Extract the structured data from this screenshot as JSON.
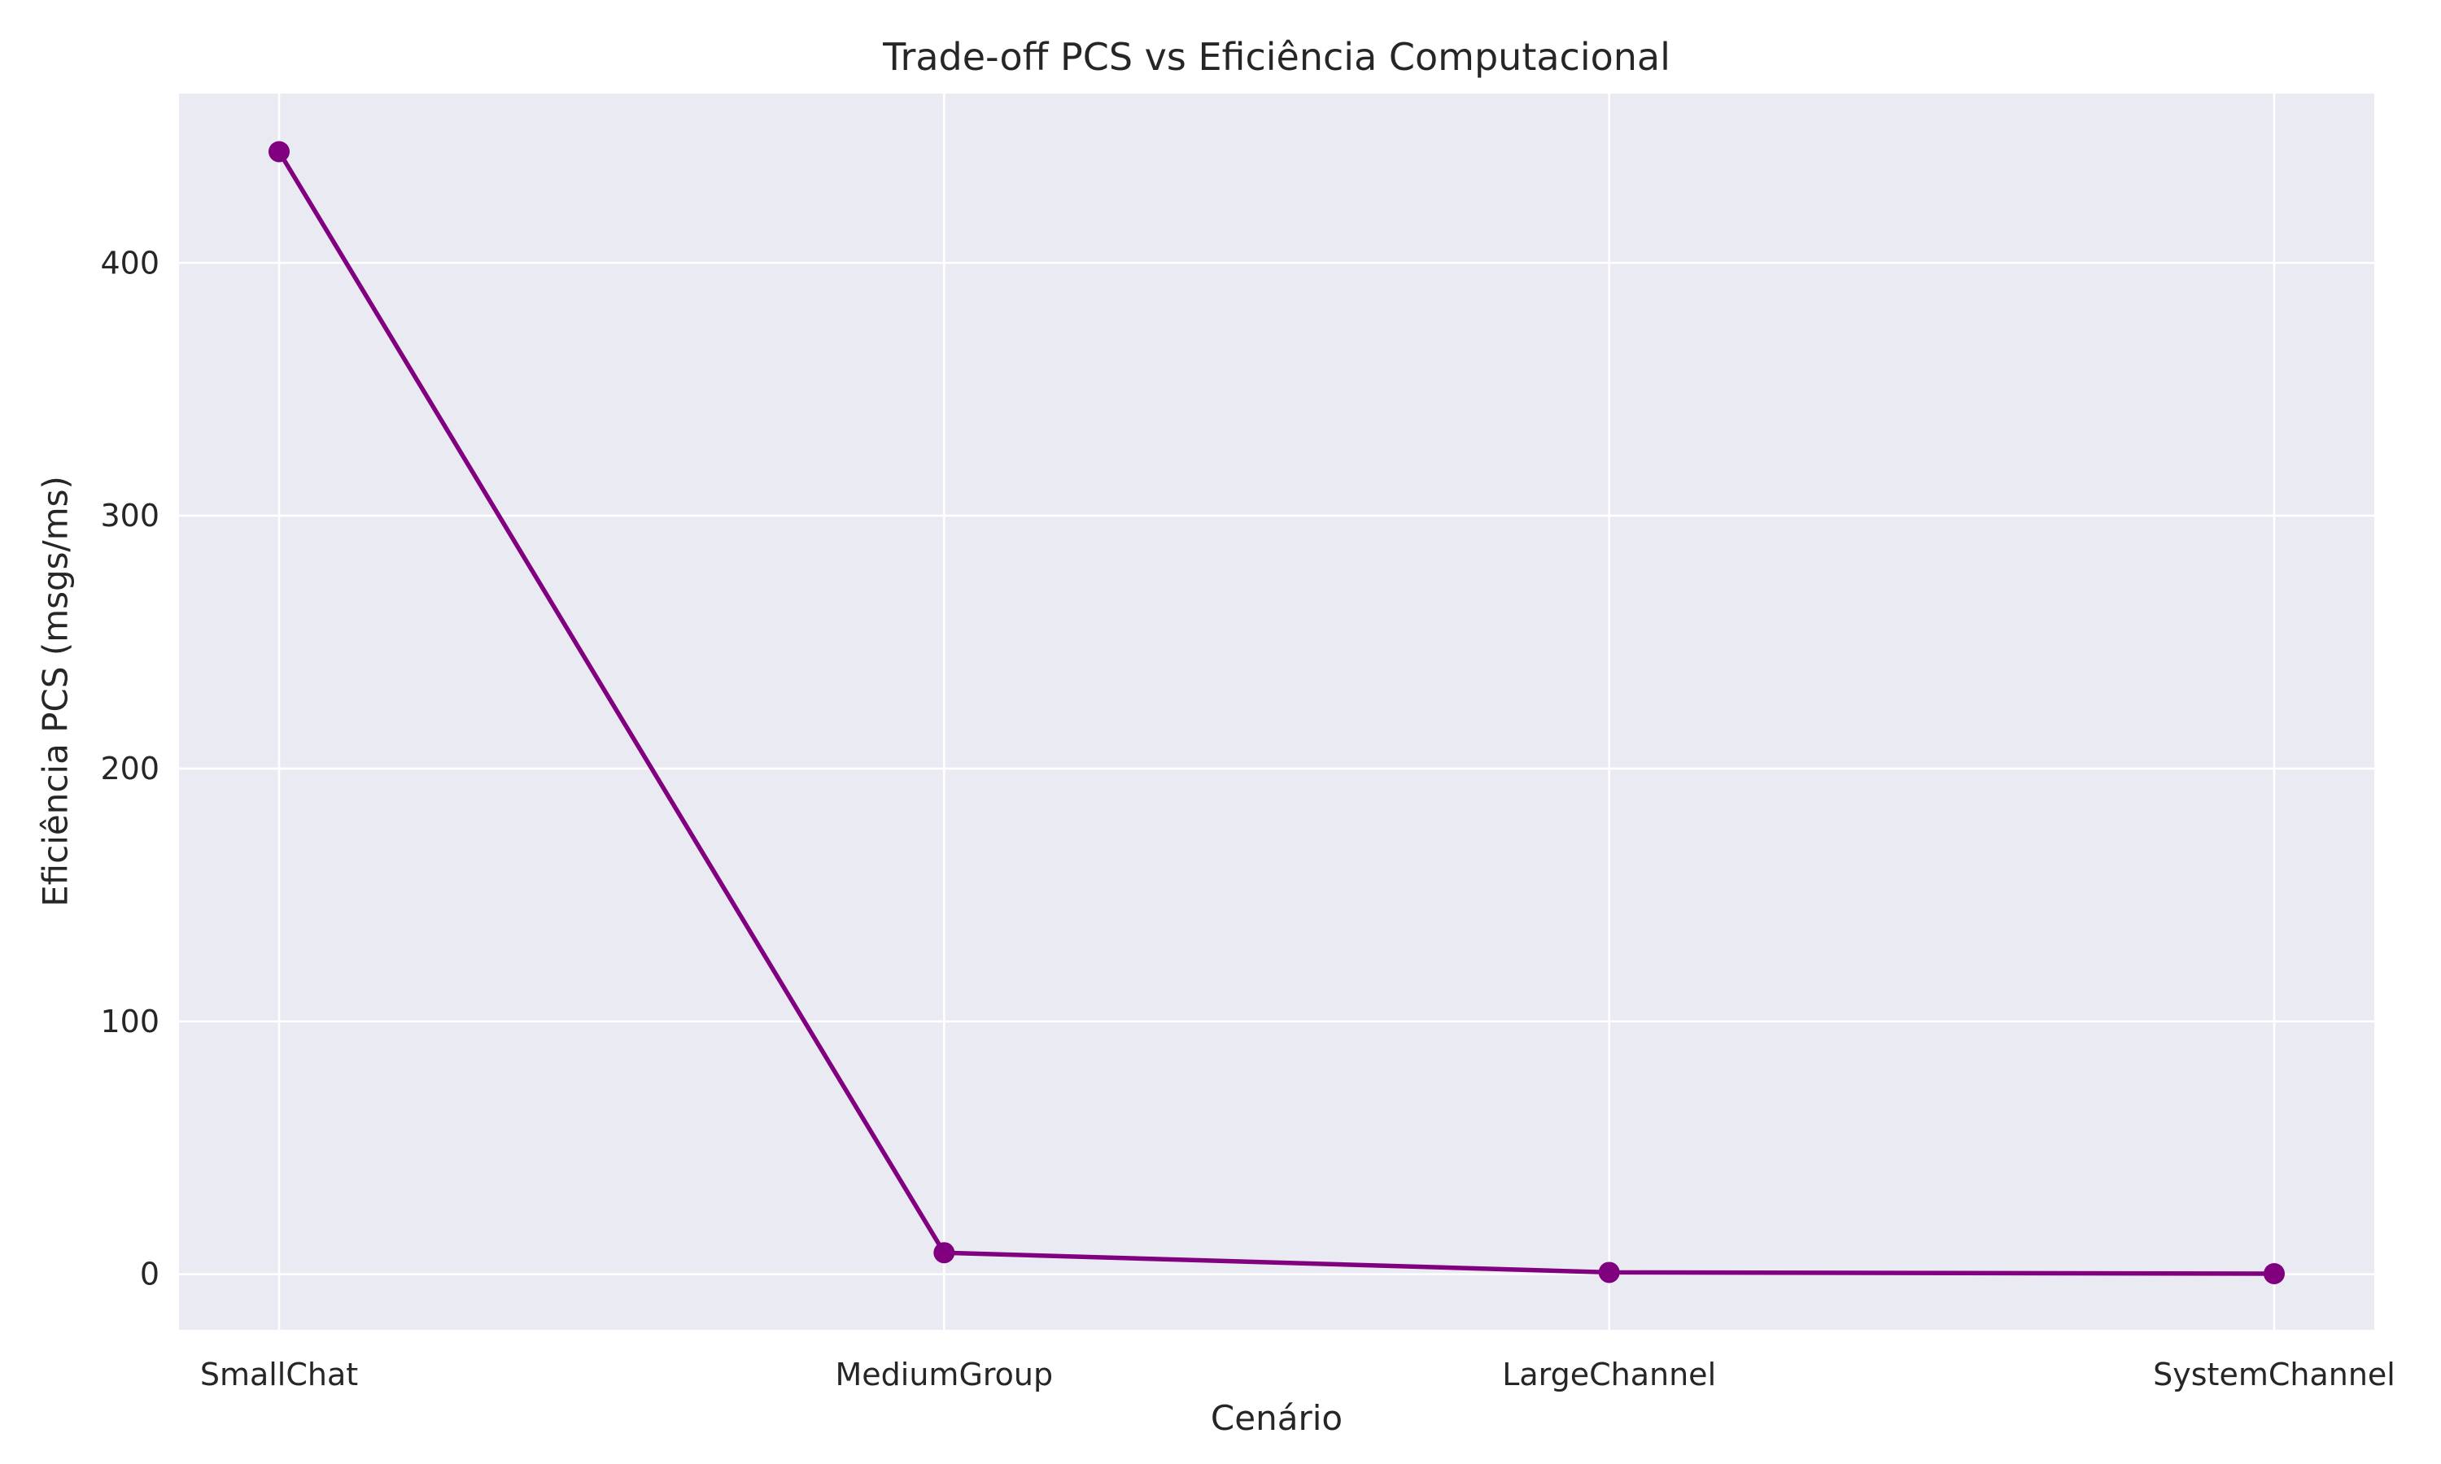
{
  "chart_data": {
    "type": "line",
    "title": "Trade-off PCS vs Eficiência Computacional",
    "xlabel": "Cenário",
    "ylabel": "Eficiência PCS (msgs/ms)",
    "categories": [
      "SmallChat",
      "MediumGroup",
      "LargeChannel",
      "SystemChannel"
    ],
    "series": [
      {
        "values": [
          444,
          8.5,
          0.7,
          0.2
        ],
        "color": "#800080",
        "marker": "circle"
      }
    ],
    "ylim": [
      -22,
      467
    ],
    "yticks": [
      0,
      100,
      200,
      300,
      400
    ],
    "ytick_labels": [
      "0",
      "100",
      "200",
      "300",
      "400"
    ],
    "grid": true,
    "legend": "none",
    "colors": {
      "plot_background": "#eaeaf2",
      "grid": "#ffffff",
      "text": "#262626"
    }
  }
}
